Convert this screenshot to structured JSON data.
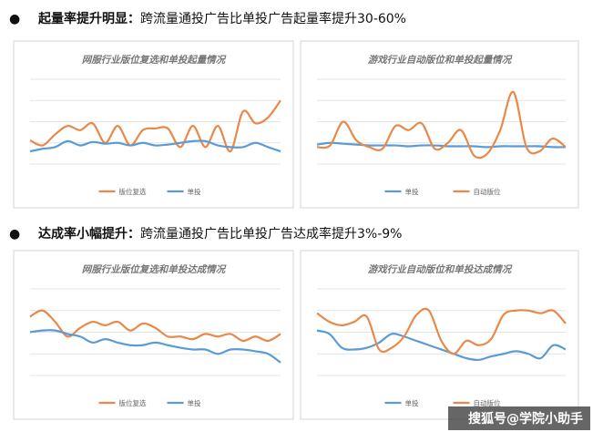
{
  "bullets": [
    {
      "heading": "起量率提升明显：",
      "text": "跨流量通投广告比单投广告起量率提升30-60%"
    },
    {
      "heading": "达成率小幅提升：",
      "text": "跨流量通投广告比单投广告达成率提升3%-9%"
    }
  ],
  "chart_data": [
    {
      "type": "line",
      "title": "网服行业版位复选和单投起量情况",
      "ylim": [
        0,
        100
      ],
      "grid": true,
      "series": [
        {
          "name": "版位复选",
          "color": "#e8894a",
          "values": [
            28,
            22,
            35,
            45,
            40,
            48,
            25,
            45,
            22,
            40,
            42,
            42,
            20,
            45,
            20,
            45,
            15,
            62,
            48,
            55,
            75
          ]
        },
        {
          "name": "单投",
          "color": "#5b9bd5",
          "values": [
            15,
            18,
            20,
            27,
            22,
            26,
            24,
            25,
            22,
            25,
            22,
            23,
            25,
            27,
            27,
            22,
            20,
            20,
            25,
            20,
            15
          ]
        }
      ]
    },
    {
      "type": "line",
      "title": "游戏行业自动版位和单投起量情况",
      "ylim": [
        0,
        100
      ],
      "grid": true,
      "series": [
        {
          "name": "单投",
          "color": "#5b9bd5",
          "values": [
            23,
            25,
            24,
            23,
            22,
            22,
            22,
            21,
            22,
            22,
            21,
            21,
            21,
            20,
            21,
            21,
            21,
            21,
            20,
            20
          ]
        },
        {
          "name": "自动版位",
          "color": "#e8894a",
          "values": [
            20,
            22,
            50,
            28,
            20,
            18,
            45,
            40,
            48,
            18,
            25,
            40,
            10,
            12,
            40,
            85,
            20,
            15,
            30,
            20
          ]
        }
      ]
    },
    {
      "type": "line",
      "title": "网服行业版位复选和单投达成情况",
      "ylim": [
        0,
        100
      ],
      "grid": true,
      "series": [
        {
          "name": "版位复选",
          "color": "#e8894a",
          "values": [
            68,
            75,
            62,
            45,
            55,
            62,
            58,
            62,
            52,
            60,
            55,
            45,
            45,
            42,
            48,
            45,
            48,
            40,
            45,
            40,
            48
          ]
        },
        {
          "name": "单投",
          "color": "#5b9bd5",
          "values": [
            50,
            52,
            52,
            48,
            45,
            38,
            42,
            38,
            35,
            35,
            38,
            35,
            32,
            30,
            30,
            25,
            30,
            30,
            28,
            25,
            15
          ]
        }
      ]
    },
    {
      "type": "line",
      "title": "游戏行业自动版位和单投达成情况",
      "ylim": [
        0,
        100
      ],
      "grid": true,
      "series": [
        {
          "name": "单投",
          "color": "#5b9bd5",
          "values": [
            52,
            48,
            32,
            30,
            32,
            38,
            48,
            45,
            40,
            35,
            30,
            25,
            20,
            18,
            22,
            25,
            28,
            25,
            20,
            35,
            30
          ]
        },
        {
          "name": "自动版位",
          "color": "#e8894a",
          "values": [
            72,
            62,
            58,
            62,
            68,
            30,
            32,
            45,
            70,
            75,
            40,
            25,
            40,
            35,
            42,
            70,
            75,
            75,
            72,
            75,
            60
          ]
        }
      ]
    }
  ],
  "watermark": "搜狐号@学院小助手"
}
